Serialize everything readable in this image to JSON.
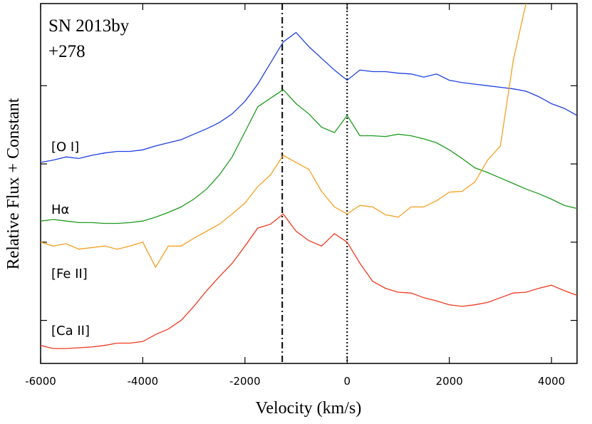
{
  "chart_data": {
    "type": "line",
    "xlabel": "Velocity (km/s)",
    "ylabel": "Relative Flux + Constant",
    "annotations": [
      "SN 2013by",
      "+278"
    ],
    "xlim": [
      -6000,
      4500
    ],
    "xticks": [
      -6000,
      -4000,
      -2000,
      0,
      2000,
      4000
    ],
    "ylim": [
      0.45,
      5.05
    ],
    "yticks": [
      1,
      2,
      3,
      4
    ],
    "vlines": [
      -1270,
      0
    ],
    "x": [
      -6000,
      -5750,
      -5500,
      -5250,
      -5000,
      -4750,
      -4500,
      -4250,
      -4000,
      -3750,
      -3500,
      -3250,
      -3000,
      -2750,
      -2500,
      -2250,
      -2000,
      -1750,
      -1500,
      -1250,
      -1000,
      -750,
      -500,
      -250,
      0,
      250,
      500,
      750,
      1000,
      1250,
      1500,
      1750,
      2000,
      2250,
      2500,
      2750,
      3000,
      3250,
      3500,
      3750,
      4000,
      4250,
      4500
    ],
    "series": [
      {
        "name": "[O I]",
        "color": "#2040e0",
        "values": [
          3.02,
          3.05,
          3.09,
          3.07,
          3.11,
          3.14,
          3.16,
          3.16,
          3.18,
          3.23,
          3.27,
          3.31,
          3.38,
          3.45,
          3.53,
          3.64,
          3.8,
          4.02,
          4.29,
          4.56,
          4.68,
          4.5,
          4.35,
          4.2,
          4.07,
          4.2,
          4.18,
          4.18,
          4.16,
          4.15,
          4.11,
          4.15,
          4.07,
          4.04,
          4.02,
          4.0,
          3.98,
          3.96,
          3.93,
          3.86,
          3.77,
          3.71,
          3.62
        ]
      },
      {
        "name": "Hα",
        "color": "#1e9a1e",
        "values": [
          2.27,
          2.29,
          2.27,
          2.25,
          2.25,
          2.24,
          2.24,
          2.25,
          2.27,
          2.32,
          2.38,
          2.45,
          2.55,
          2.68,
          2.86,
          3.09,
          3.41,
          3.73,
          3.84,
          3.95,
          3.77,
          3.64,
          3.47,
          3.4,
          3.62,
          3.36,
          3.36,
          3.35,
          3.38,
          3.36,
          3.32,
          3.27,
          3.18,
          3.07,
          2.95,
          2.89,
          2.82,
          2.75,
          2.68,
          2.62,
          2.55,
          2.47,
          2.43
        ]
      },
      {
        "name": "[Fe II]",
        "color": "#f5a020",
        "values": [
          2.0,
          1.95,
          1.98,
          1.91,
          1.93,
          1.95,
          1.91,
          1.95,
          2.0,
          1.68,
          1.95,
          1.95,
          2.05,
          2.14,
          2.23,
          2.36,
          2.5,
          2.71,
          2.86,
          3.11,
          3.02,
          2.93,
          2.65,
          2.45,
          2.36,
          2.47,
          2.45,
          2.35,
          2.32,
          2.45,
          2.45,
          2.53,
          2.64,
          2.65,
          2.77,
          3.05,
          3.23,
          4.32,
          5.05,
          null,
          null,
          null,
          null
        ]
      },
      {
        "name": "[Ca II]",
        "color": "#f03a20",
        "values": [
          0.68,
          0.64,
          0.64,
          0.65,
          0.66,
          0.68,
          0.71,
          0.71,
          0.73,
          0.82,
          0.89,
          1.0,
          1.18,
          1.38,
          1.56,
          1.73,
          1.95,
          2.18,
          2.23,
          2.36,
          2.14,
          2.02,
          1.95,
          2.11,
          2.0,
          1.73,
          1.5,
          1.41,
          1.36,
          1.35,
          1.29,
          1.25,
          1.2,
          1.18,
          1.2,
          1.23,
          1.29,
          1.35,
          1.36,
          1.41,
          1.45,
          1.38,
          1.32
        ]
      }
    ]
  }
}
